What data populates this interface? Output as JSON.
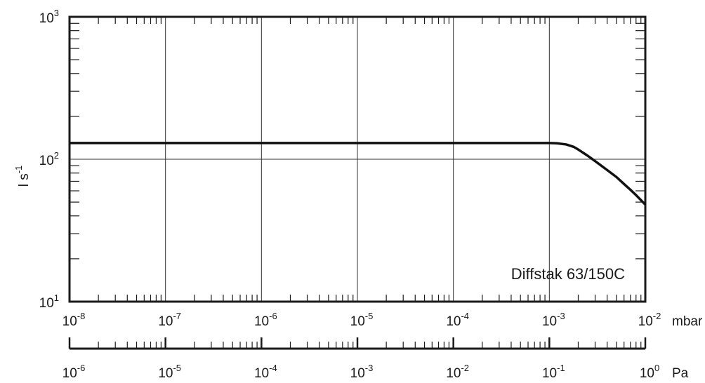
{
  "chart_data": {
    "type": "line",
    "title": "",
    "annotation": "Diffstak 63/150C",
    "xscale": "log",
    "yscale": "log",
    "xlim": [
      1e-08,
      0.01
    ],
    "ylim": [
      10,
      1000
    ],
    "grid": "major decades",
    "ylabel": {
      "base": "l s",
      "exponent": "-1"
    },
    "x_unit": "mbar",
    "x2_unit": "Pa",
    "x_ticks": [
      {
        "value": 1e-08,
        "base": "10",
        "exp": "-8"
      },
      {
        "value": 1e-07,
        "base": "10",
        "exp": "-7"
      },
      {
        "value": 1e-06,
        "base": "10",
        "exp": "-6"
      },
      {
        "value": 1e-05,
        "base": "10",
        "exp": "-5"
      },
      {
        "value": 0.0001,
        "base": "10",
        "exp": "-4"
      },
      {
        "value": 0.001,
        "base": "10",
        "exp": "-3"
      },
      {
        "value": 0.01,
        "base": "10",
        "exp": "-2"
      }
    ],
    "x2_ticks": [
      {
        "value": 1e-06,
        "base": "10",
        "exp": "-6"
      },
      {
        "value": 1e-05,
        "base": "10",
        "exp": "-5"
      },
      {
        "value": 0.0001,
        "base": "10",
        "exp": "-4"
      },
      {
        "value": 0.001,
        "base": "10",
        "exp": "-3"
      },
      {
        "value": 0.01,
        "base": "10",
        "exp": "-2"
      },
      {
        "value": 0.1,
        "base": "10",
        "exp": "-1"
      },
      {
        "value": 1,
        "base": "10",
        "exp": "0"
      }
    ],
    "y_ticks": [
      {
        "value": 10,
        "base": "10",
        "exp": "1"
      },
      {
        "value": 100,
        "base": "10",
        "exp": "2"
      },
      {
        "value": 1000,
        "base": "10",
        "exp": "3"
      }
    ],
    "series": [
      {
        "x": [
          1e-08,
          1e-06,
          0.0001,
          0.001,
          0.0012,
          0.0015,
          0.0018,
          0.002,
          0.0025,
          0.003,
          0.004,
          0.005,
          0.006,
          0.007,
          0.008,
          0.01
        ],
        "y": [
          130,
          130,
          130,
          130,
          129.5,
          127,
          122,
          117,
          106,
          97,
          84,
          75,
          67,
          61,
          56,
          48
        ]
      }
    ]
  }
}
